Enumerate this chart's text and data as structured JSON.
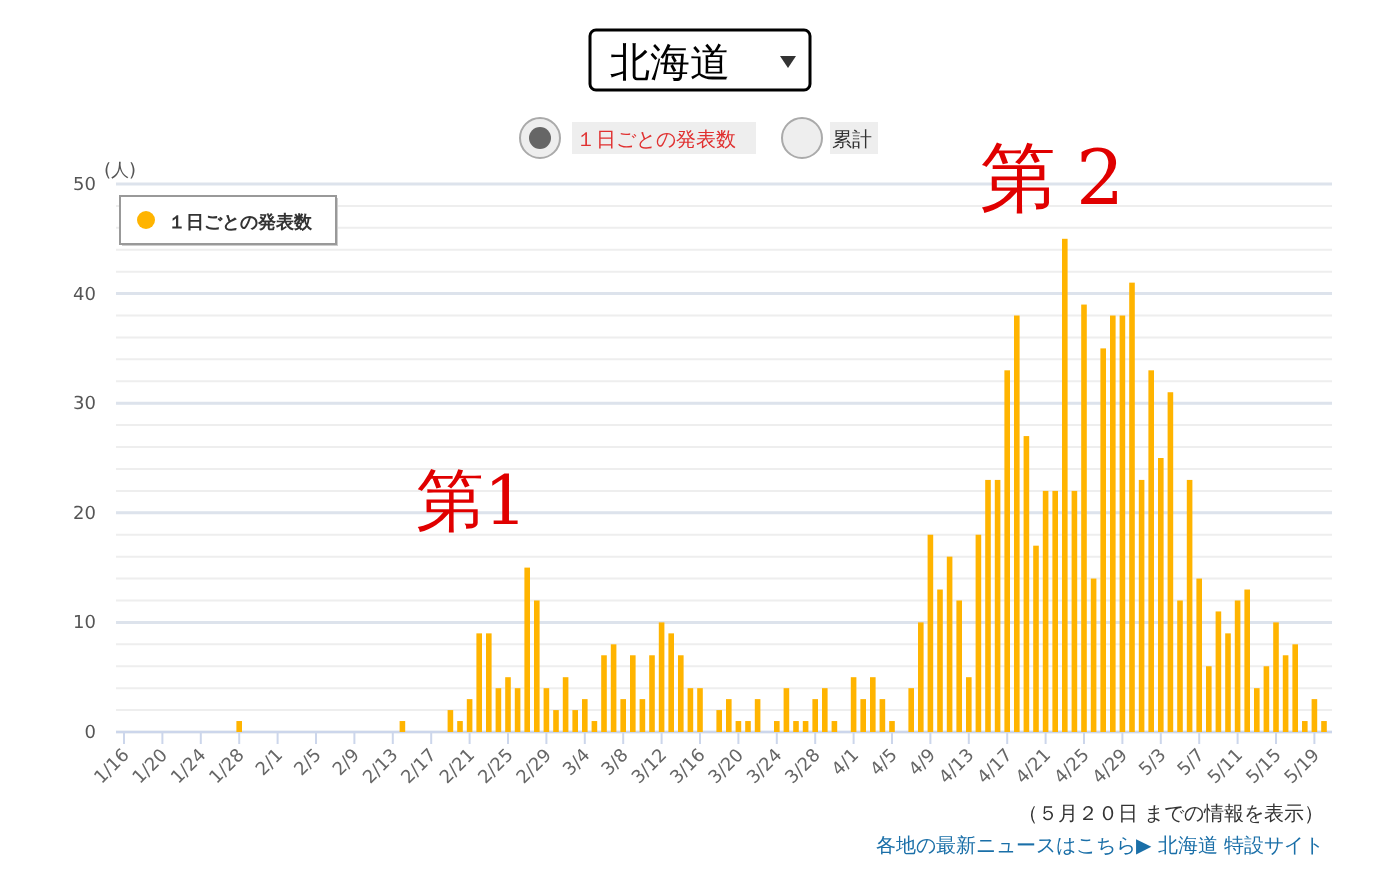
{
  "chart_data": {
    "type": "bar",
    "title": "北海道",
    "ylabel": "(人)",
    "annotations": [
      "１日ごとの発表数",
      "累計",
      "第1",
      "第2",
      "（５月２０日 までの情報を表示）",
      "各地の最新ニュースはこちら▶ 北海道 特設サイト"
    ],
    "categories": [
      "1/16",
      null,
      null,
      null,
      "1/20",
      null,
      null,
      null,
      "1/24",
      null,
      null,
      null,
      "1/28",
      null,
      null,
      null,
      "2/1",
      null,
      null,
      null,
      "2/5",
      null,
      null,
      null,
      "2/9",
      null,
      null,
      null,
      "2/13",
      null,
      null,
      null,
      "2/17",
      null,
      null,
      null,
      "2/21",
      null,
      null,
      null,
      "2/25",
      null,
      null,
      null,
      "2/29",
      null,
      null,
      null,
      "3/4",
      null,
      null,
      null,
      "3/8",
      null,
      null,
      null,
      "3/12",
      null,
      null,
      null,
      "3/16",
      null,
      null,
      null,
      "3/20",
      null,
      null,
      null,
      "3/24",
      null,
      null,
      null,
      "3/28",
      null,
      null,
      null,
      "4/1",
      null,
      null,
      null,
      "4/5",
      null,
      null,
      null,
      "4/9",
      null,
      null,
      null,
      "4/13",
      null,
      null,
      null,
      "4/17",
      null,
      null,
      null,
      "4/21",
      null,
      null,
      null,
      "4/25",
      null,
      null,
      null,
      "4/29",
      null,
      null,
      null,
      "5/3",
      null,
      null,
      null,
      "5/7",
      null,
      null,
      null,
      "5/11",
      null,
      null,
      null,
      "5/15",
      null,
      null,
      null,
      "5/19",
      null
    ],
    "series": [
      {
        "name": "１日ごとの発表数",
        "color": "#ffb400",
        "values": [
          0,
          0,
          0,
          0,
          0,
          0,
          0,
          0,
          0,
          0,
          0,
          0,
          1,
          0,
          0,
          0,
          0,
          0,
          0,
          0,
          0,
          0,
          0,
          0,
          0,
          0,
          0,
          0,
          0,
          1,
          0,
          0,
          0,
          0,
          2,
          1,
          3,
          9,
          9,
          4,
          5,
          4,
          15,
          12,
          4,
          2,
          5,
          2,
          3,
          1,
          7,
          8,
          3,
          7,
          3,
          7,
          10,
          9,
          7,
          4,
          4,
          0,
          2,
          3,
          1,
          1,
          3,
          0,
          1,
          4,
          1,
          1,
          3,
          4,
          1,
          0,
          5,
          3,
          5,
          3,
          1,
          0,
          4,
          10,
          18,
          13,
          16,
          12,
          5,
          18,
          23,
          23,
          33,
          38,
          27,
          17,
          22,
          22,
          45,
          22,
          39,
          14,
          35,
          38,
          38,
          41,
          23,
          33,
          25,
          31,
          12,
          23,
          14,
          6,
          11,
          9,
          12,
          13,
          4,
          6,
          10,
          7,
          8,
          1,
          3,
          1
        ]
      }
    ],
    "ylim": [
      0,
      50
    ],
    "yticks": [
      0,
      10,
      20,
      30,
      40,
      50
    ],
    "grid": "y",
    "legend": "top left"
  }
}
